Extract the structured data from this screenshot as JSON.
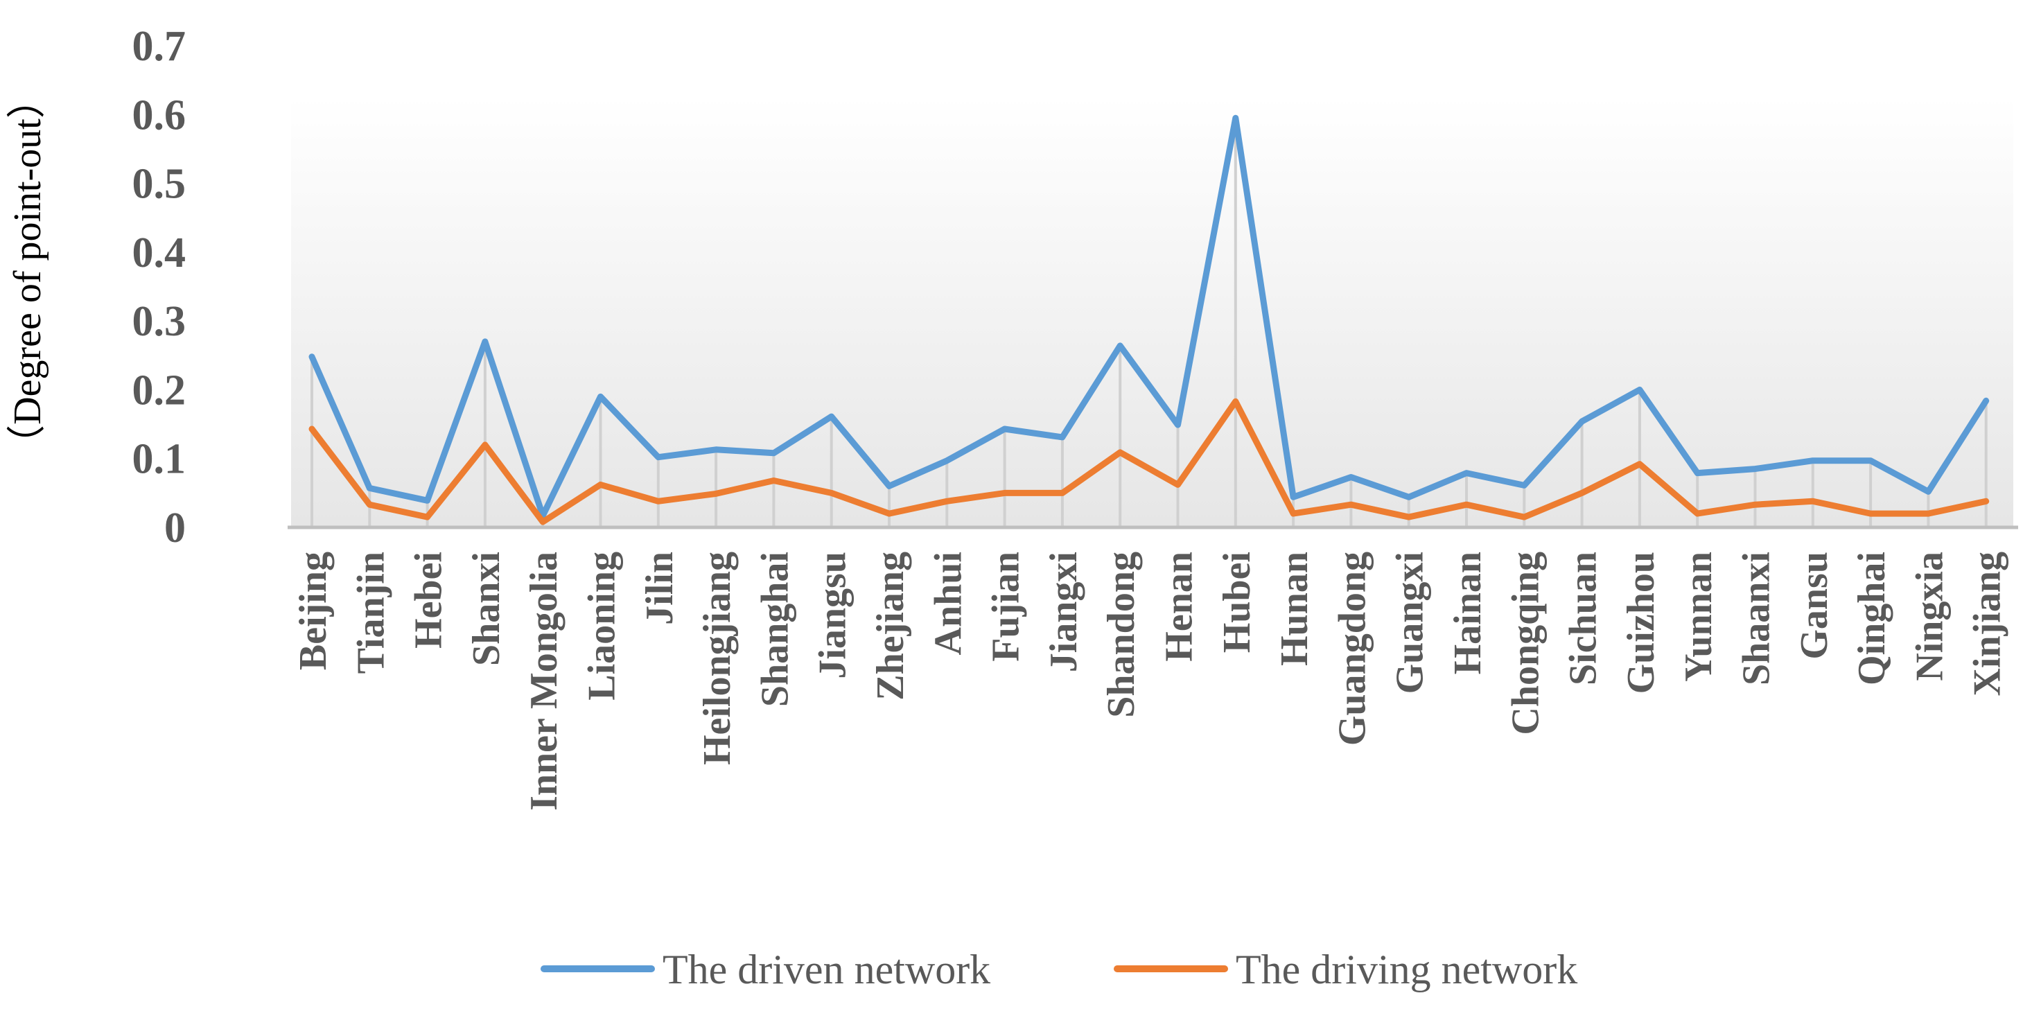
{
  "chart_data": {
    "type": "line",
    "ylabel": "（Degree of point-out）",
    "xlabel": "",
    "ylim": [
      0,
      0.7
    ],
    "yticks": [
      "0",
      "0.1",
      "0.2",
      "0.3",
      "0.4",
      "0.5",
      "0.6",
      "0.7"
    ],
    "grid": "vertical drop lines",
    "legend_position": "bottom",
    "categories": [
      "Beijing",
      "Tianjin",
      "Hebei",
      "Shanxi",
      "Inner Mongolia",
      "Liaoning",
      "Jilin",
      "Heilongjiang",
      "Shanghai",
      "Jiangsu",
      "Zhejiang",
      "Anhui",
      "Fujian",
      "Jiangxi",
      "Shandong",
      "Henan",
      "Hubei",
      "Hunan",
      "Guangdong",
      "Guangxi",
      "Hainan",
      "Chongqing",
      "Sichuan",
      "Guizhou",
      "Yunnan",
      "Shaanxi",
      "Gansu",
      "Qinghai",
      "Ningxia",
      "Xinjiang"
    ],
    "series": [
      {
        "name": "The driven network",
        "color": "#5B9BD5",
        "values": [
          0.248,
          0.057,
          0.039,
          0.27,
          0.017,
          0.19,
          0.102,
          0.113,
          0.108,
          0.161,
          0.06,
          0.097,
          0.143,
          0.131,
          0.264,
          0.149,
          0.595,
          0.044,
          0.073,
          0.044,
          0.079,
          0.061,
          0.154,
          0.2,
          0.079,
          0.085,
          0.097,
          0.097,
          0.052,
          0.184
        ]
      },
      {
        "name": "The driving network",
        "color": "#ED7D31",
        "values": [
          0.143,
          0.033,
          0.015,
          0.12,
          0.008,
          0.062,
          0.038,
          0.049,
          0.068,
          0.05,
          0.02,
          0.038,
          0.05,
          0.05,
          0.109,
          0.062,
          0.183,
          0.02,
          0.033,
          0.015,
          0.033,
          0.015,
          0.05,
          0.092,
          0.02,
          0.033,
          0.038,
          0.02,
          0.02,
          0.038
        ]
      }
    ]
  }
}
